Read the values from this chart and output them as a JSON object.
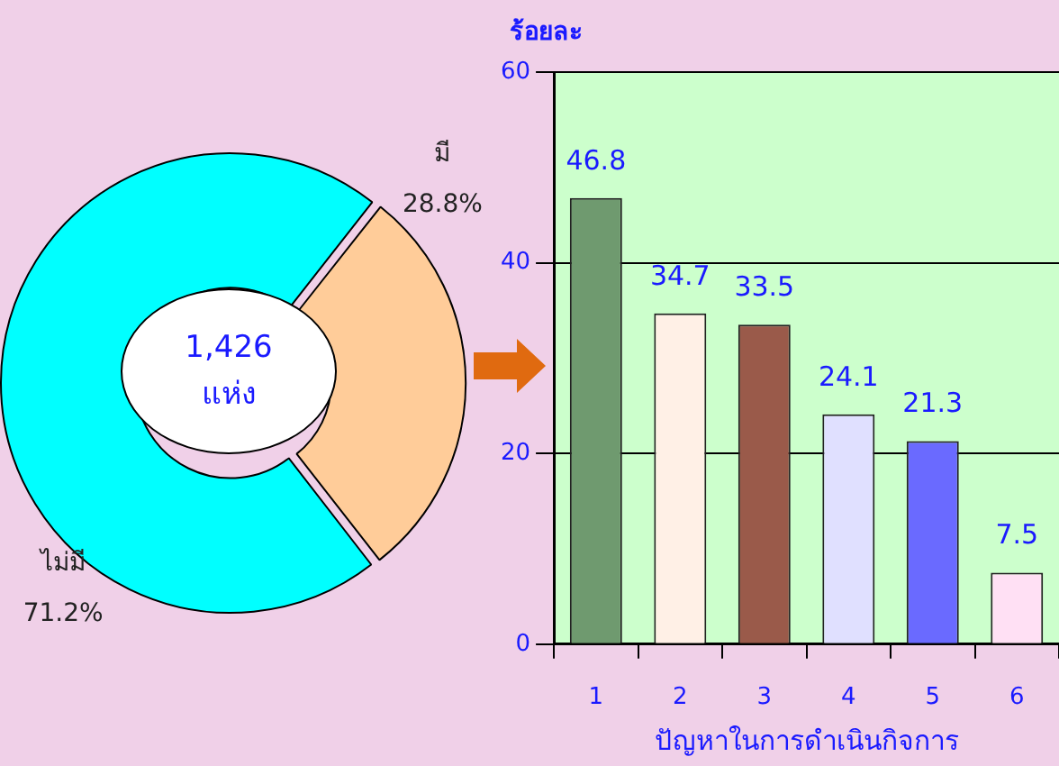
{
  "chart_data": [
    {
      "type": "donut",
      "categories": [
        "ไม่มี",
        "มี"
      ],
      "values": [
        71.2,
        28.8
      ],
      "colors": [
        "#00ffff",
        "#ffcc99"
      ],
      "value_labels": [
        "71.2%",
        "28.8%"
      ],
      "annotations": [
        "1,426",
        "แห่ง"
      ]
    },
    {
      "type": "bar",
      "categories": [
        "1",
        "2",
        "3",
        "4",
        "5",
        "6"
      ],
      "values": [
        46.8,
        34.7,
        33.5,
        24.1,
        21.3,
        7.5
      ],
      "colors": [
        "#6f9a6f",
        "#fff0e6",
        "#9a5a4a",
        "#e0e0ff",
        "#6a6aff",
        "#ffe0f4"
      ],
      "ylim": [
        0,
        60
      ],
      "yticks": [
        0,
        20,
        40,
        60
      ],
      "grid": "y",
      "data_labels": true,
      "xlabel": "ปัญหาในการดำเนินกิจการ",
      "ylabel": "ร้อยละ"
    }
  ]
}
